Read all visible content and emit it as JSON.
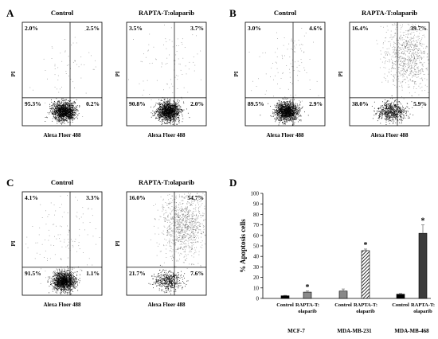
{
  "panels": {
    "A": {
      "letter": "A"
    },
    "B": {
      "letter": "B"
    },
    "C": {
      "letter": "C"
    },
    "D": {
      "letter": "D"
    }
  },
  "flow_axis": {
    "x_label": "Alexa Floer 488",
    "y_label": "PI"
  },
  "flow_plots": [
    {
      "id": "A-control",
      "title": "Control",
      "q": {
        "ul": "2.0%",
        "ur": "2.5%",
        "ll": "95.3%",
        "lr": "0.2%"
      },
      "upper_frac": 0.045,
      "treated": false
    },
    {
      "id": "A-treated",
      "title": "RAPTA-T:olaparib",
      "q": {
        "ul": "3.5%",
        "ur": "3.7%",
        "ll": "90.8%",
        "lr": "2.0%"
      },
      "upper_frac": 0.07,
      "treated": false
    },
    {
      "id": "B-control",
      "title": "Control",
      "q": {
        "ul": "3.0%",
        "ur": "4.6%",
        "ll": "89.5%",
        "lr": "2.9%"
      },
      "upper_frac": 0.08,
      "treated": false
    },
    {
      "id": "B-treated",
      "title": "RAPTA-T:olaparib",
      "q": {
        "ul": "16.4%",
        "ur": "39.7%",
        "ll": "38.0%",
        "lr": "5.9%"
      },
      "upper_frac": 0.56,
      "treated": true
    },
    {
      "id": "C-control",
      "title": "Control",
      "q": {
        "ul": "4.1%",
        "ur": "3.3%",
        "ll": "91.5%",
        "lr": "1.1%"
      },
      "upper_frac": 0.075,
      "treated": false
    },
    {
      "id": "C-treated",
      "title": "RAPTA-T:olaparib",
      "q": {
        "ul": "16.0%",
        "ur": "54.7%",
        "ll": "21.7%",
        "lr": "7.6%"
      },
      "upper_frac": 0.7,
      "treated": true
    }
  ],
  "chart_data": {
    "type": "bar",
    "ylabel": "% Apoptosis cells",
    "ylim": [
      0,
      100
    ],
    "yticks": [
      0,
      10,
      20,
      30,
      40,
      50,
      60,
      70,
      80,
      90,
      100
    ],
    "groups": [
      "MCF-7",
      "MDA-MB-231",
      "MDA-MB-468"
    ],
    "series": [
      {
        "name": "Control",
        "values": [
          2.5,
          7,
          4
        ],
        "errors": [
          0.4,
          2.0,
          0.7
        ]
      },
      {
        "name": "RAPTA-T: olaparib",
        "values": [
          6,
          45.5,
          62
        ],
        "errors": [
          1.0,
          1.5,
          8.0
        ]
      }
    ],
    "bar_labels": {
      "control": "Control",
      "treated_line1": "RAPTA-T:",
      "treated_line2": "olaparib"
    },
    "significance_mark": "*",
    "significance": [
      false,
      true,
      true
    ]
  }
}
